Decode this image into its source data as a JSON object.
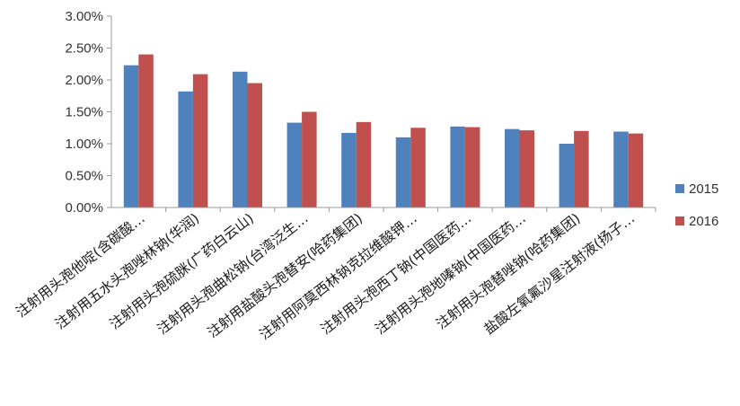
{
  "chart_data": {
    "type": "bar",
    "categories": [
      "注射用头孢他啶(含碳酸…",
      "注射用五水头孢唑林钠(华润)",
      "注射用头孢硫脒(广药白云山)",
      "注射用头孢曲松钠(台湾泛生…",
      "注射用盐酸头孢替安(哈药集团)",
      "注射用阿莫西林钠克拉维酸钾…",
      "注射用头孢西丁钠(中国医药…",
      "注射用头孢地嗪钠(中国医药…",
      "注射用头孢替唑钠(哈药集团)",
      "盐酸左氧氟沙星注射液(扬子…"
    ],
    "series": [
      {
        "name": "2015",
        "color": "#4f81bd",
        "values": [
          2.23,
          1.82,
          2.13,
          1.33,
          1.17,
          1.1,
          1.27,
          1.23,
          1.0,
          1.19
        ]
      },
      {
        "name": "2016",
        "color": "#c0504d",
        "values": [
          2.4,
          2.09,
          1.95,
          1.5,
          1.34,
          1.25,
          1.26,
          1.21,
          1.2,
          1.16
        ]
      }
    ],
    "yticks": [
      "0.00%",
      "0.50%",
      "1.00%",
      "1.50%",
      "2.00%",
      "2.50%",
      "3.00%"
    ],
    "ylim": [
      0,
      3.0
    ],
    "legend_position": "right",
    "grid": false
  }
}
